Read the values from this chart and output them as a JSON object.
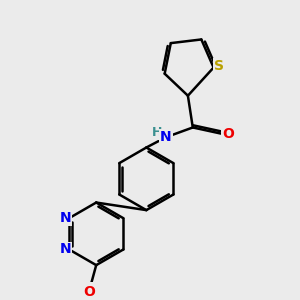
{
  "bg_color": "#ebebeb",
  "bond_color": "#000000",
  "bond_width": 1.8,
  "atom_colors": {
    "S": "#b8a000",
    "N": "#0000ee",
    "O": "#ee0000",
    "H": "#3a9090",
    "C": "#000000"
  },
  "font_size": 9,
  "fig_size": [
    3.0,
    3.0
  ],
  "dpi": 100
}
